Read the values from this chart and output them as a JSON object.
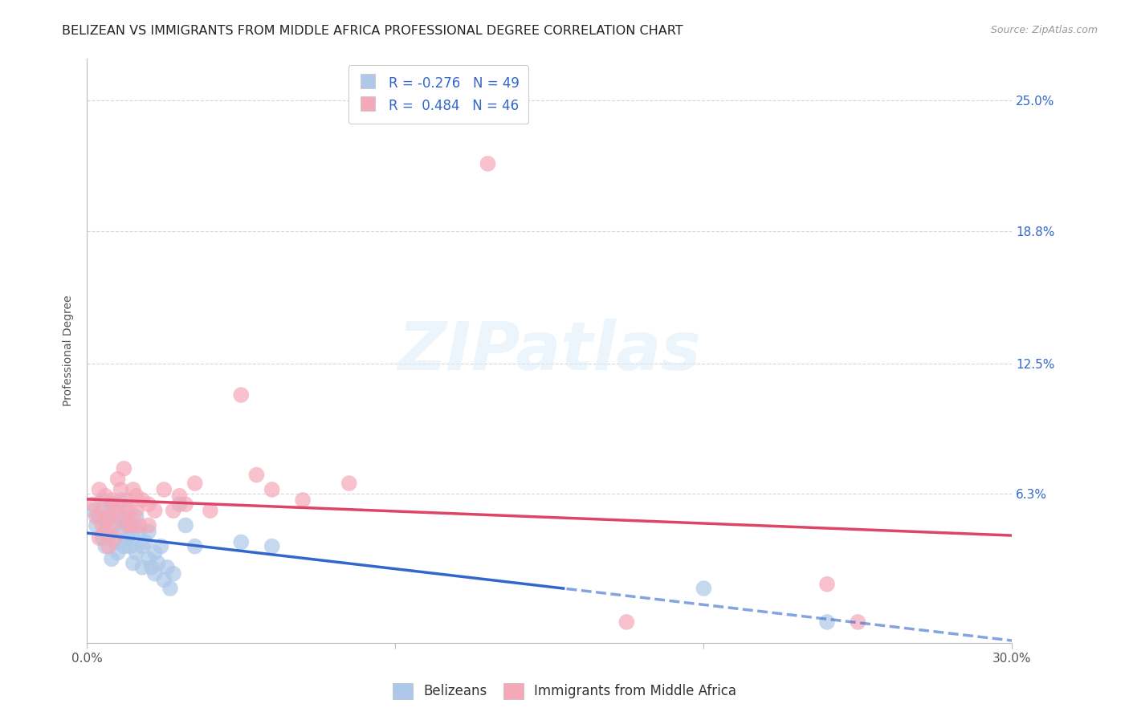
{
  "title": "BELIZEAN VS IMMIGRANTS FROM MIDDLE AFRICA PROFESSIONAL DEGREE CORRELATION CHART",
  "source": "Source: ZipAtlas.com",
  "ylabel": "Professional Degree",
  "ytick_labels": [
    "25.0%",
    "18.8%",
    "12.5%",
    "6.3%"
  ],
  "ytick_values": [
    0.25,
    0.188,
    0.125,
    0.063
  ],
  "xlim": [
    0.0,
    0.3
  ],
  "ylim": [
    -0.008,
    0.27
  ],
  "legend_blue_R": "-0.276",
  "legend_blue_N": "49",
  "legend_pink_R": "0.484",
  "legend_pink_N": "46",
  "legend_entries": [
    "Belizeans",
    "Immigrants from Middle Africa"
  ],
  "watermark_text": "ZIPatlas",
  "blue_color": "#adc8e8",
  "pink_color": "#f5a8b8",
  "blue_line_color": "#3366cc",
  "pink_line_color": "#dd4466",
  "grid_color": "#cccccc",
  "background_color": "#ffffff",
  "title_fontsize": 11.5,
  "source_fontsize": 9,
  "axis_label_fontsize": 10,
  "tick_fontsize": 11,
  "blue_scatter": [
    [
      0.002,
      0.055
    ],
    [
      0.003,
      0.048
    ],
    [
      0.004,
      0.052
    ],
    [
      0.005,
      0.06
    ],
    [
      0.005,
      0.042
    ],
    [
      0.006,
      0.05
    ],
    [
      0.006,
      0.038
    ],
    [
      0.007,
      0.055
    ],
    [
      0.007,
      0.043
    ],
    [
      0.008,
      0.058
    ],
    [
      0.008,
      0.032
    ],
    [
      0.009,
      0.048
    ],
    [
      0.009,
      0.04
    ],
    [
      0.01,
      0.052
    ],
    [
      0.01,
      0.035
    ],
    [
      0.011,
      0.06
    ],
    [
      0.011,
      0.045
    ],
    [
      0.012,
      0.038
    ],
    [
      0.012,
      0.05
    ],
    [
      0.013,
      0.042
    ],
    [
      0.013,
      0.055
    ],
    [
      0.014,
      0.038
    ],
    [
      0.014,
      0.048
    ],
    [
      0.015,
      0.042
    ],
    [
      0.015,
      0.03
    ],
    [
      0.016,
      0.052
    ],
    [
      0.016,
      0.035
    ],
    [
      0.017,
      0.045
    ],
    [
      0.018,
      0.038
    ],
    [
      0.018,
      0.028
    ],
    [
      0.019,
      0.04
    ],
    [
      0.02,
      0.032
    ],
    [
      0.02,
      0.045
    ],
    [
      0.021,
      0.028
    ],
    [
      0.022,
      0.035
    ],
    [
      0.022,
      0.025
    ],
    [
      0.023,
      0.03
    ],
    [
      0.024,
      0.038
    ],
    [
      0.025,
      0.022
    ],
    [
      0.026,
      0.028
    ],
    [
      0.027,
      0.018
    ],
    [
      0.028,
      0.025
    ],
    [
      0.03,
      0.058
    ],
    [
      0.032,
      0.048
    ],
    [
      0.035,
      0.038
    ],
    [
      0.05,
      0.04
    ],
    [
      0.06,
      0.038
    ],
    [
      0.2,
      0.018
    ],
    [
      0.24,
      0.002
    ]
  ],
  "pink_scatter": [
    [
      0.002,
      0.058
    ],
    [
      0.003,
      0.052
    ],
    [
      0.004,
      0.065
    ],
    [
      0.004,
      0.042
    ],
    [
      0.005,
      0.048
    ],
    [
      0.005,
      0.055
    ],
    [
      0.006,
      0.062
    ],
    [
      0.006,
      0.045
    ],
    [
      0.007,
      0.052
    ],
    [
      0.007,
      0.038
    ],
    [
      0.008,
      0.06
    ],
    [
      0.008,
      0.048
    ],
    [
      0.009,
      0.055
    ],
    [
      0.009,
      0.042
    ],
    [
      0.01,
      0.07
    ],
    [
      0.01,
      0.058
    ],
    [
      0.011,
      0.065
    ],
    [
      0.012,
      0.075
    ],
    [
      0.012,
      0.052
    ],
    [
      0.013,
      0.06
    ],
    [
      0.013,
      0.048
    ],
    [
      0.014,
      0.055
    ],
    [
      0.015,
      0.065
    ],
    [
      0.015,
      0.048
    ],
    [
      0.016,
      0.062
    ],
    [
      0.016,
      0.055
    ],
    [
      0.017,
      0.048
    ],
    [
      0.018,
      0.06
    ],
    [
      0.02,
      0.058
    ],
    [
      0.02,
      0.048
    ],
    [
      0.022,
      0.055
    ],
    [
      0.025,
      0.065
    ],
    [
      0.028,
      0.055
    ],
    [
      0.03,
      0.062
    ],
    [
      0.032,
      0.058
    ],
    [
      0.035,
      0.068
    ],
    [
      0.04,
      0.055
    ],
    [
      0.05,
      0.11
    ],
    [
      0.055,
      0.072
    ],
    [
      0.06,
      0.065
    ],
    [
      0.07,
      0.06
    ],
    [
      0.085,
      0.068
    ],
    [
      0.13,
      0.22
    ],
    [
      0.175,
      0.002
    ],
    [
      0.24,
      0.02
    ],
    [
      0.25,
      0.002
    ]
  ]
}
